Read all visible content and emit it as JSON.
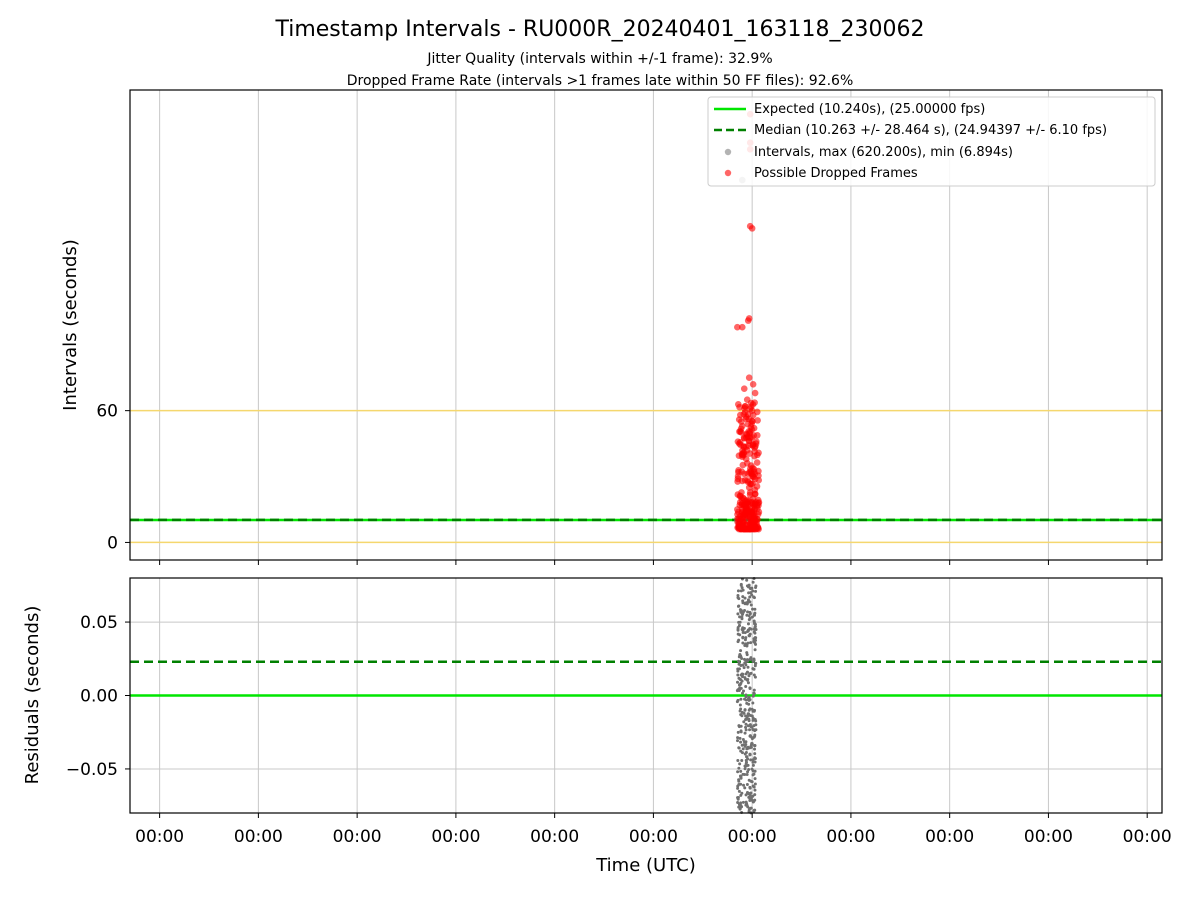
{
  "chart_data": {
    "title": "Timestamp Intervals - RU000R_20240401_163118_230062",
    "subtitle_lines": [
      "Jitter Quality (intervals within +/-1 frame): 32.9%",
      "Dropped Frame Rate (intervals >1 frames late within 50 FF files): 92.6%"
    ],
    "xlabel": "Time (UTC)",
    "x_tick_labels": [
      "00:00",
      "00:00",
      "00:00",
      "00:00",
      "00:00",
      "00:00",
      "00:00",
      "00:00",
      "00:00",
      "00:00",
      "00:00"
    ],
    "panels": [
      {
        "type": "scatter",
        "ylabel": "Intervals (seconds)",
        "ylim": [
          -8,
          206
        ],
        "y_ticks": [
          0,
          60
        ],
        "y_tick_labels": [
          "0",
          "60"
        ],
        "grid": "vertical",
        "reference_lines": [
          {
            "name": "Expected (10.240s), (25.00000 fps)",
            "value": 10.24,
            "style": "solid",
            "color": "#00e600"
          },
          {
            "name": "Median (10.263 +/- 28.464 s), (24.94397 +/- 6.10 fps)",
            "value": 10.263,
            "style": "dashed",
            "color": "#008000"
          },
          {
            "value": 0,
            "style": "solid",
            "color": "#f5d76e"
          },
          {
            "value": 60,
            "style": "solid",
            "color": "#f5d76e"
          }
        ],
        "series": [
          {
            "name": "Intervals, max (620.200s), min (6.894s)",
            "color": "#808080",
            "points": [
              [
                5.9,
                165
              ],
              [
                5.85,
                10
              ],
              [
                5.95,
                11
              ],
              [
                6.0,
                9
              ]
            ]
          },
          {
            "name": "Possible Dropped Frames",
            "color": "#ff0000",
            "points": [
              [
                5.98,
                195
              ],
              [
                5.98,
                182
              ],
              [
                5.98,
                179
              ],
              [
                5.98,
                144
              ],
              [
                6.0,
                143
              ],
              [
                5.85,
                98
              ],
              [
                5.9,
                98
              ],
              [
                5.96,
                101
              ],
              [
                5.97,
                102
              ],
              [
                5.88,
                58
              ],
              [
                5.89,
                55
              ],
              [
                5.87,
                45
              ],
              [
                5.9,
                40
              ],
              [
                5.86,
                32
              ],
              [
                5.9,
                28
              ],
              [
                5.93,
                62
              ],
              [
                5.95,
                65
              ],
              [
                6.0,
                60
              ],
              [
                6.02,
                52
              ],
              [
                5.96,
                48
              ],
              [
                6.04,
                45
              ],
              [
                5.94,
                38
              ],
              [
                5.99,
                35
              ],
              [
                6.01,
                30
              ],
              [
                5.97,
                25
              ],
              [
                6.03,
                22
              ],
              [
                5.95,
                18
              ],
              [
                5.85,
                15
              ],
              [
                5.9,
                14
              ],
              [
                5.99,
                14
              ],
              [
                6.02,
                13
              ],
              [
                5.88,
                12
              ],
              [
                5.95,
                12
              ],
              [
                5.92,
                70
              ],
              [
                5.97,
                75
              ],
              [
                6.01,
                72
              ],
              [
                6.03,
                68
              ]
            ]
          }
        ],
        "legend_position": "upper-right"
      },
      {
        "type": "scatter",
        "ylabel": "Residuals (seconds)",
        "ylim": [
          -0.08,
          0.08
        ],
        "y_ticks": [
          0.05,
          0.0,
          -0.05
        ],
        "y_tick_labels": [
          "0.05",
          "0.00",
          "−0.05"
        ],
        "grid": "both",
        "reference_lines": [
          {
            "value": 0.0,
            "style": "solid",
            "color": "#00e600"
          },
          {
            "value": 0.023,
            "style": "dashed",
            "color": "#008000"
          }
        ],
        "series": [
          {
            "color": "#707070",
            "x_range": [
              5.85,
              6.04
            ],
            "y_range": [
              -0.08,
              0.08
            ]
          }
        ]
      }
    ],
    "x_range": [
      -0.3,
      10.15
    ],
    "x_ticks": [
      0,
      1,
      2,
      3,
      4,
      5,
      6,
      7,
      8,
      9,
      10
    ]
  }
}
